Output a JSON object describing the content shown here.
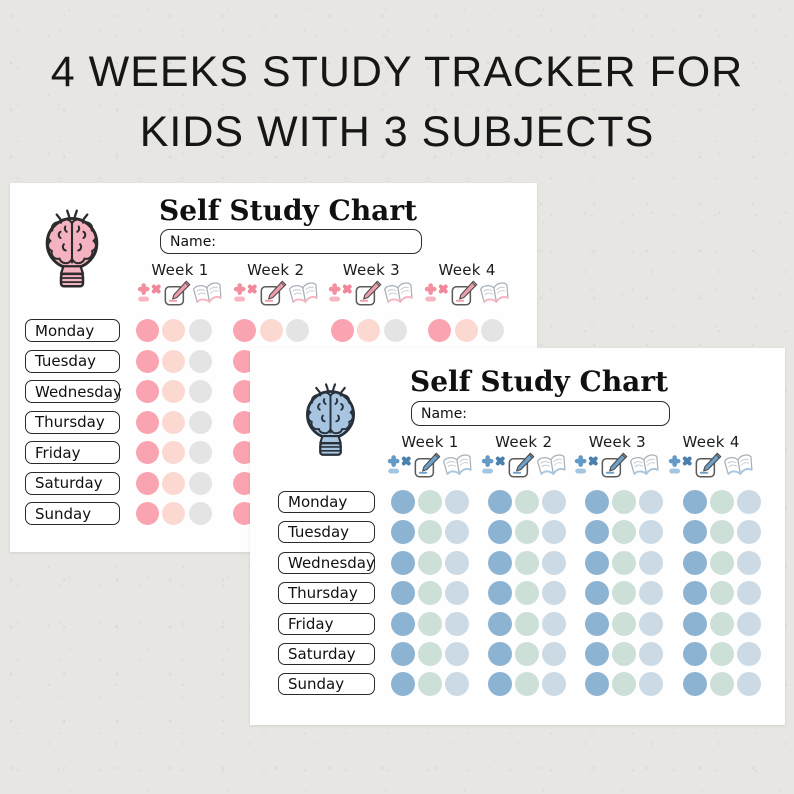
{
  "heading": {
    "line1": "4 WEEKS STUDY TRACKER FOR",
    "line2": "KIDS WITH 3 SUBJECTS"
  },
  "cards": [
    {
      "theme": "pink",
      "title": "Self Study Chart",
      "name_label": "Name:",
      "weeks": [
        "Week 1",
        "Week 2",
        "Week 3",
        "Week 4"
      ],
      "days": [
        "Monday",
        "Tuesday",
        "Wednesday",
        "Thursday",
        "Friday",
        "Saturday",
        "Sunday"
      ],
      "subjects": [
        "math",
        "writing",
        "reading"
      ],
      "colors": {
        "bulb": "#f5b2c0",
        "outline": "#2b2b2b",
        "dots": [
          "#f9a4b0",
          "#fbd8d0",
          "#e4e4e4"
        ],
        "math_plus": "#f38fa0",
        "math_times": "#f0879a",
        "math_minus": "#f7b6c0",
        "pencil": "#ef9dac",
        "book_tint": "#f5b5c0"
      }
    },
    {
      "theme": "blue",
      "title": "Self Study Chart",
      "name_label": "Name:",
      "weeks": [
        "Week 1",
        "Week 2",
        "Week 3",
        "Week 4"
      ],
      "days": [
        "Monday",
        "Tuesday",
        "Wednesday",
        "Thursday",
        "Friday",
        "Saturday",
        "Sunday"
      ],
      "subjects": [
        "math",
        "writing",
        "reading"
      ],
      "colors": {
        "bulb": "#a7c5e0",
        "outline": "#28303a",
        "dots": [
          "#8db3d3",
          "#cde0d8",
          "#cbdae4"
        ],
        "math_plus": "#649ac6",
        "math_times": "#4b7fae",
        "math_minus": "#a5c6e0",
        "pencil": "#6fa0c8",
        "book_tint": "#a8c6de"
      }
    }
  ]
}
